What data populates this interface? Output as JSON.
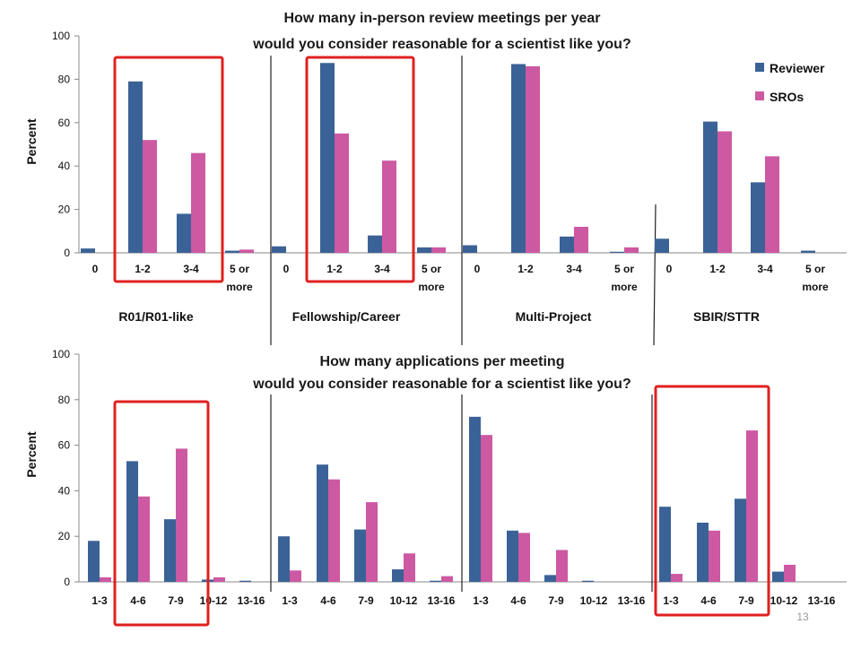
{
  "page_number": "13",
  "colors": {
    "reviewer": "#3a6296",
    "sros": "#cd59a2",
    "highlight": "#e02020"
  },
  "chart_data": [
    {
      "type": "bar",
      "title": [
        "How many in-person review meetings per year",
        "would you consider reasonable for a scientist like you?"
      ],
      "ylabel": "Percent",
      "ylim": [
        0,
        100
      ],
      "yticks": [
        0,
        20,
        40,
        60,
        80,
        100
      ],
      "legend": {
        "placement": "top-right",
        "entries": [
          "Reviewer",
          "SROs"
        ]
      },
      "groups": [
        {
          "name": "R01/R01-like",
          "categories": [
            "0",
            "1-2",
            "3-4",
            "5 or more"
          ],
          "series": [
            {
              "name": "Reviewer",
              "values": [
                2,
                79,
                18,
                1
              ]
            },
            {
              "name": "SROs",
              "values": [
                0,
                52,
                46,
                1.5
              ]
            }
          ]
        },
        {
          "name": "Fellowship/Career",
          "categories": [
            "0",
            "1-2",
            "3-4",
            "5 or more"
          ],
          "series": [
            {
              "name": "Reviewer",
              "values": [
                3,
                87.5,
                8,
                2.5
              ]
            },
            {
              "name": "SROs",
              "values": [
                0,
                55,
                42.5,
                2.5
              ]
            }
          ]
        },
        {
          "name": "Multi-Project",
          "categories": [
            "0",
            "1-2",
            "3-4",
            "5 or more"
          ],
          "series": [
            {
              "name": "Reviewer",
              "values": [
                3.5,
                87,
                7.5,
                0.5
              ]
            },
            {
              "name": "SROs",
              "values": [
                0,
                86,
                12,
                2.5
              ]
            }
          ]
        },
        {
          "name": "SBIR/STTR",
          "categories": [
            "0",
            "1-2",
            "3-4",
            "5 or more"
          ],
          "series": [
            {
              "name": "Reviewer",
              "values": [
                6.5,
                60.5,
                32.5,
                1
              ]
            },
            {
              "name": "SROs",
              "values": [
                0,
                56,
                44.5,
                0
              ]
            }
          ]
        }
      ],
      "highlighted_categories": [
        {
          "group": 0,
          "from": 0,
          "to": 2
        },
        {
          "group": 1,
          "from": 1,
          "to": 2
        }
      ]
    },
    {
      "type": "bar",
      "title": [
        "How many applications per meeting",
        "would you consider reasonable for a scientist like you?"
      ],
      "ylabel": "Percent",
      "ylim": [
        0,
        100
      ],
      "yticks": [
        0,
        20,
        40,
        60,
        80,
        100
      ],
      "groups": [
        {
          "categories": [
            "1-3",
            "4-6",
            "7-9",
            "10-12",
            "13-16"
          ],
          "series": [
            {
              "name": "Reviewer",
              "values": [
                18,
                53,
                27.5,
                1,
                0.5
              ]
            },
            {
              "name": "SROs",
              "values": [
                2,
                37.5,
                58.5,
                2,
                0
              ]
            }
          ]
        },
        {
          "categories": [
            "1-3",
            "4-6",
            "7-9",
            "10-12",
            "13-16"
          ],
          "series": [
            {
              "name": "Reviewer",
              "values": [
                20,
                51.5,
                23,
                5.5,
                0.5
              ]
            },
            {
              "name": "SROs",
              "values": [
                5,
                45,
                35,
                12.5,
                2.5
              ]
            }
          ]
        },
        {
          "categories": [
            "1-3",
            "4-6",
            "7-9",
            "10-12",
            "13-16"
          ],
          "series": [
            {
              "name": "Reviewer",
              "values": [
                72.5,
                22.5,
                3,
                0.5,
                0
              ]
            },
            {
              "name": "SROs",
              "values": [
                64.5,
                21.5,
                14,
                0,
                0
              ]
            }
          ]
        },
        {
          "categories": [
            "1-3",
            "4-6",
            "7-9",
            "10-12",
            "13-16"
          ],
          "series": [
            {
              "name": "Reviewer",
              "values": [
                33,
                26,
                36.5,
                4.5,
                0
              ]
            },
            {
              "name": "SROs",
              "values": [
                3.5,
                22.5,
                66.5,
                7.5,
                0
              ]
            }
          ]
        }
      ],
      "highlighted_categories": [
        {
          "group": 0,
          "from": 1,
          "to": 2
        },
        {
          "group": 3,
          "from": 0,
          "to": 2
        }
      ]
    }
  ]
}
